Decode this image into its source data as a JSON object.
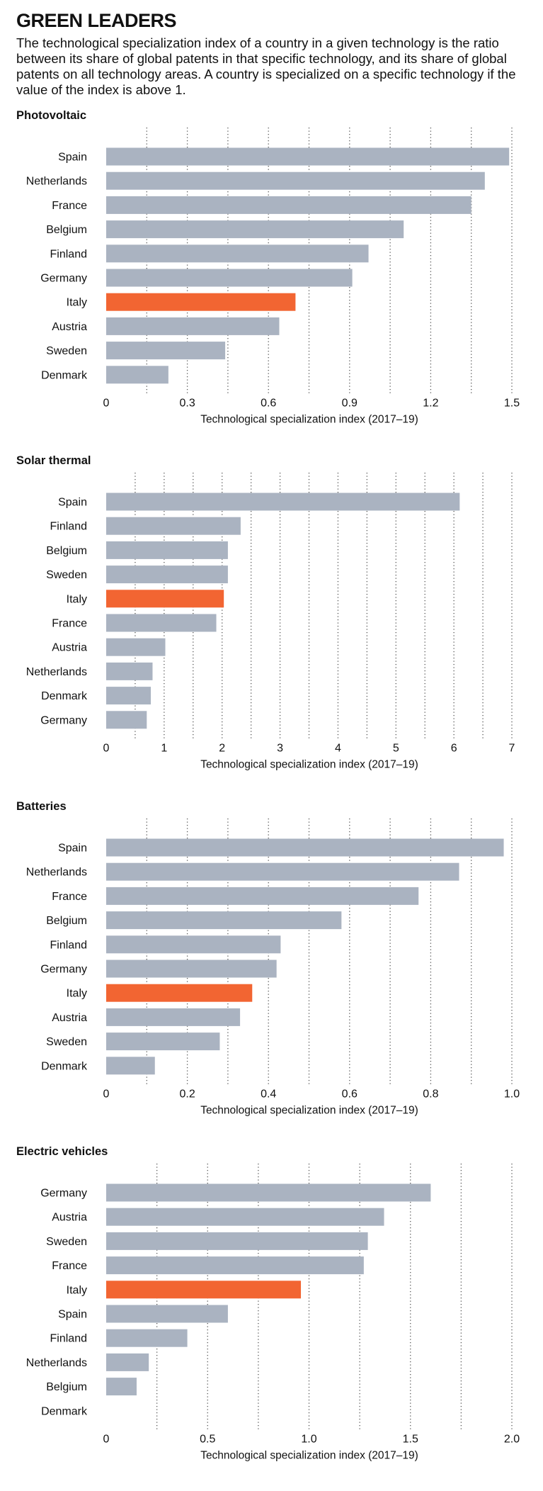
{
  "header": {
    "title": "GREEN LEADERS",
    "subtitle": "The technological specialization index of a country in a given technology is the ratio between its share of global patents in that specific technology, and its share of global patents on all technology areas. A country is specialized on a specific technology if the value of the index is above 1."
  },
  "colors": {
    "bar": "#aab3c1",
    "highlight": "#f26532",
    "grid": "#555555"
  },
  "chart_data": [
    {
      "type": "bar",
      "orientation": "horizontal",
      "title": "Photovoltaic",
      "xlabel": "Technological specialization index (2017–19)",
      "categories": [
        "Spain",
        "Netherlands",
        "France",
        "Belgium",
        "Finland",
        "Germany",
        "Italy",
        "Austria",
        "Sweden",
        "Denmark"
      ],
      "values": [
        1.49,
        1.4,
        1.35,
        1.1,
        0.97,
        0.91,
        0.7,
        0.64,
        0.44,
        0.23
      ],
      "highlight": "Italy",
      "xlim": [
        0,
        1.5
      ],
      "ticks": [
        0,
        0.3,
        0.6,
        0.9,
        1.2,
        1.5
      ],
      "tick_labels": [
        "0",
        "0.3",
        "0.6",
        "0.9",
        "1.2",
        "1.5"
      ],
      "gridlines": [
        0.15,
        0.3,
        0.45,
        0.6,
        0.75,
        0.9,
        1.05,
        1.2,
        1.35,
        1.5
      ]
    },
    {
      "type": "bar",
      "orientation": "horizontal",
      "title": "Solar thermal",
      "xlabel": "Technological specialization index (2017–19)",
      "categories": [
        "Spain",
        "Finland",
        "Belgium",
        "Sweden",
        "Italy",
        "France",
        "Austria",
        "Netherlands",
        "Denmark",
        "Germany"
      ],
      "values": [
        6.1,
        2.32,
        2.1,
        2.1,
        2.03,
        1.9,
        1.02,
        0.8,
        0.77,
        0.7
      ],
      "highlight": "Italy",
      "xlim": [
        0,
        7
      ],
      "ticks": [
        0,
        1,
        2,
        3,
        4,
        5,
        6,
        7
      ],
      "tick_labels": [
        "0",
        "1",
        "2",
        "3",
        "4",
        "5",
        "6",
        "7"
      ],
      "gridlines": [
        0.5,
        1,
        1.5,
        2,
        2.5,
        3,
        3.5,
        4,
        4.5,
        5,
        5.5,
        6,
        6.5,
        7
      ]
    },
    {
      "type": "bar",
      "orientation": "horizontal",
      "title": "Batteries",
      "xlabel": "Technological specialization index (2017–19)",
      "categories": [
        "Spain",
        "Netherlands",
        "France",
        "Belgium",
        "Finland",
        "Germany",
        "Italy",
        "Austria",
        "Sweden",
        "Denmark"
      ],
      "values": [
        0.98,
        0.87,
        0.77,
        0.58,
        0.43,
        0.42,
        0.36,
        0.33,
        0.28,
        0.12
      ],
      "highlight": "Italy",
      "xlim": [
        0,
        1.0
      ],
      "ticks": [
        0,
        0.2,
        0.4,
        0.6,
        0.8,
        1.0
      ],
      "tick_labels": [
        "0",
        "0.2",
        "0.4",
        "0.6",
        "0.8",
        "1.0"
      ],
      "gridlines": [
        0.1,
        0.2,
        0.3,
        0.4,
        0.5,
        0.6,
        0.7,
        0.8,
        0.9,
        1.0
      ]
    },
    {
      "type": "bar",
      "orientation": "horizontal",
      "title": "Electric vehicles",
      "xlabel": "Technological specialization index (2017–19)",
      "categories": [
        "Germany",
        "Austria",
        "Sweden",
        "France",
        "Italy",
        "Spain",
        "Finland",
        "Netherlands",
        "Belgium",
        "Denmark"
      ],
      "values": [
        1.6,
        1.37,
        1.29,
        1.27,
        0.96,
        0.6,
        0.4,
        0.21,
        0.15,
        0
      ],
      "highlight": "Italy",
      "xlim": [
        0,
        2.0
      ],
      "ticks": [
        0,
        0.5,
        1.0,
        1.5,
        2.0
      ],
      "tick_labels": [
        "0",
        "0.5",
        "1.0",
        "1.5",
        "2.0"
      ],
      "gridlines": [
        0.25,
        0.5,
        0.75,
        1.0,
        1.25,
        1.5,
        1.75,
        2.0
      ]
    }
  ]
}
